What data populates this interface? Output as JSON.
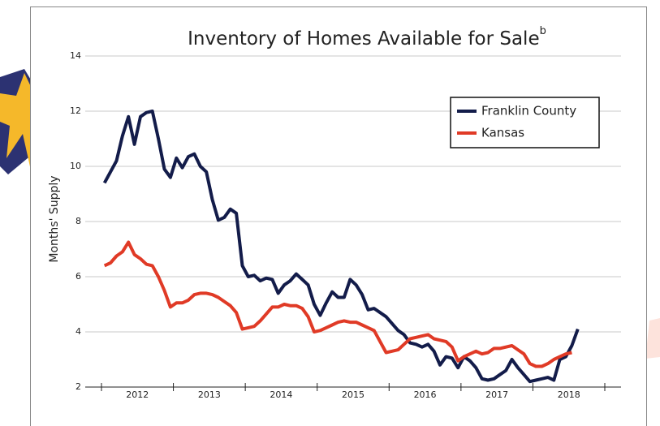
{
  "chart_data": {
    "type": "line",
    "title": "Inventory of Homes Available for Sale",
    "title_superscript": "b",
    "y_label": "Months' Supply",
    "years": [
      "2012",
      "2013",
      "2014",
      "2015",
      "2016",
      "2017",
      "2018"
    ],
    "ylim": [
      2,
      14
    ],
    "yticks": [
      2,
      4,
      6,
      8,
      10,
      12,
      14
    ],
    "grid": true,
    "legend": "upper right",
    "series": [
      {
        "name": "Franklin County",
        "color": "#131c4a",
        "values": [
          9.4,
          9.8,
          10.2,
          11.1,
          11.8,
          10.8,
          11.8,
          11.95,
          12.0,
          11.0,
          9.9,
          9.6,
          10.3,
          9.95,
          10.35,
          10.45,
          10.0,
          9.8,
          8.8,
          8.05,
          8.15,
          8.45,
          8.3,
          6.4,
          6.0,
          6.05,
          5.85,
          5.95,
          5.9,
          5.4,
          5.7,
          5.85,
          6.1,
          5.9,
          5.7,
          5.0,
          4.6,
          5.05,
          5.45,
          5.25,
          5.25,
          5.9,
          5.7,
          5.35,
          4.8,
          4.85,
          4.7,
          4.55,
          4.3,
          4.05,
          3.9,
          3.6,
          3.55,
          3.45,
          3.55,
          3.3,
          2.8,
          3.1,
          3.05,
          2.7,
          3.1,
          2.95,
          2.7,
          2.3,
          2.25,
          2.3,
          2.45,
          2.6,
          3.0,
          2.7,
          2.45,
          2.2,
          2.25,
          2.3,
          2.35,
          2.25,
          3.0,
          3.1,
          3.5,
          4.1
        ]
      },
      {
        "name": "Kansas",
        "color": "#e03a26",
        "values": [
          6.4,
          6.5,
          6.75,
          6.9,
          7.25,
          6.8,
          6.65,
          6.45,
          6.4,
          6.0,
          5.5,
          4.9,
          5.05,
          5.05,
          5.15,
          5.35,
          5.4,
          5.4,
          5.35,
          5.25,
          5.1,
          4.95,
          4.7,
          4.1,
          4.15,
          4.2,
          4.4,
          4.65,
          4.9,
          4.9,
          5.0,
          4.95,
          4.95,
          4.85,
          4.55,
          4.0,
          4.05,
          4.15,
          4.25,
          4.35,
          4.4,
          4.35,
          4.35,
          4.25,
          4.15,
          4.05,
          3.65,
          3.25,
          3.3,
          3.35,
          3.55,
          3.75,
          3.8,
          3.85,
          3.9,
          3.75,
          3.7,
          3.65,
          3.45,
          2.95,
          3.1,
          3.2,
          3.3,
          3.2,
          3.25,
          3.4,
          3.4,
          3.45,
          3.5,
          3.35,
          3.2,
          2.85,
          2.75,
          2.75,
          2.85,
          3.0,
          3.1,
          3.2,
          3.25,
          null
        ]
      }
    ]
  }
}
